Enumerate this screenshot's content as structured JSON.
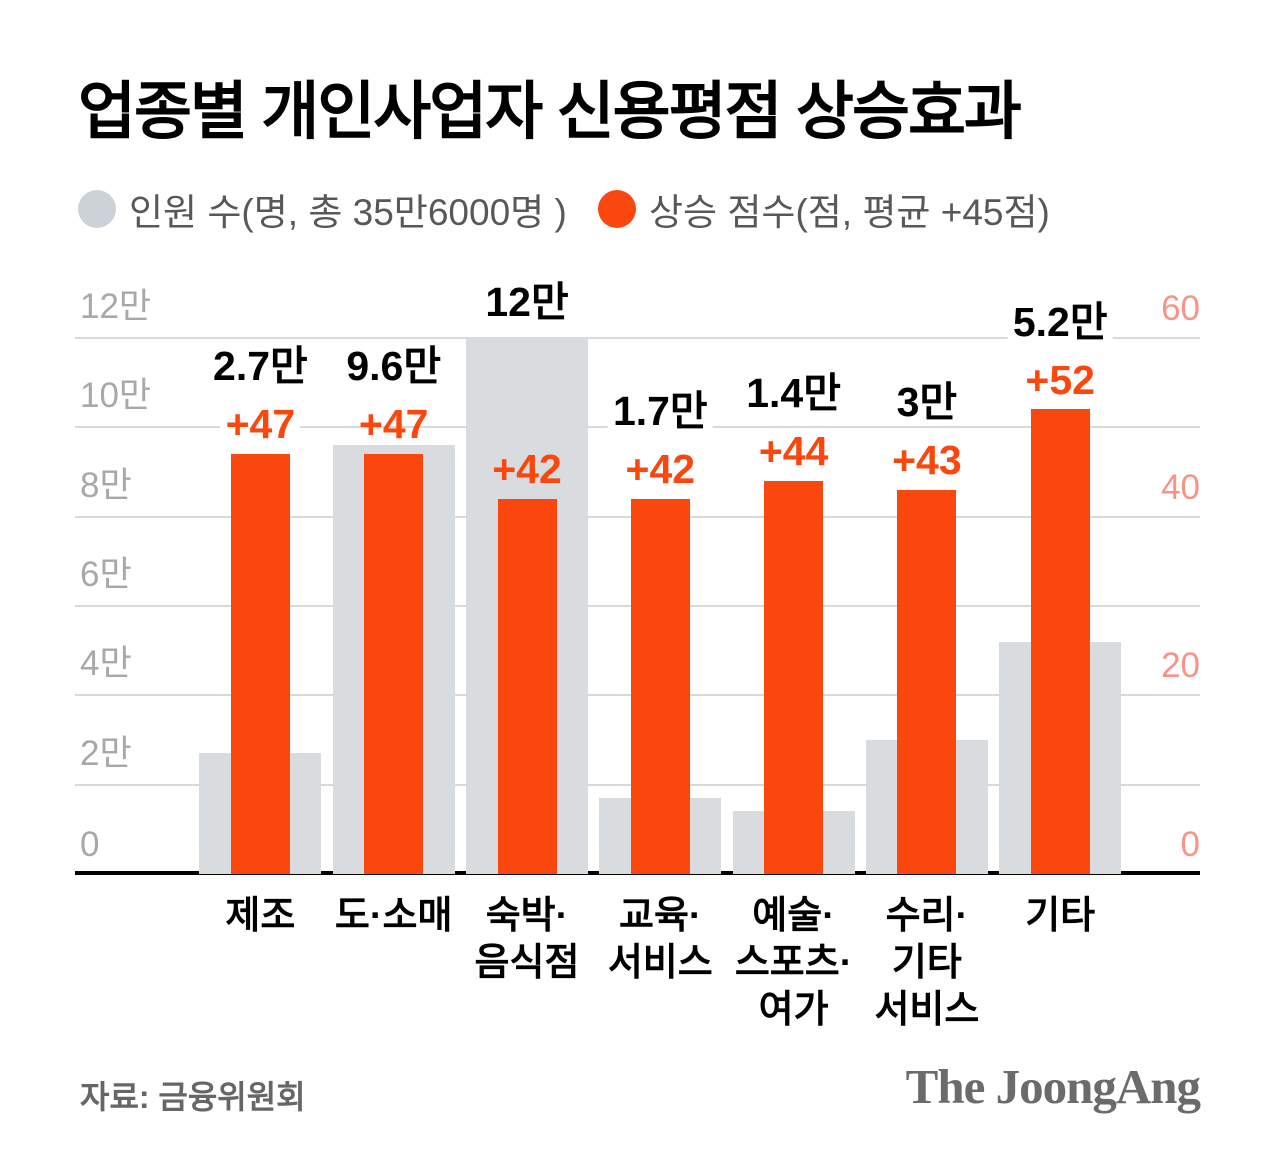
{
  "title": "업종별 개인사업자 신용평점 상승효과",
  "legend": {
    "people": {
      "label": "인원 수(명, 총 35만6000명 )",
      "color": "#ccd2d7"
    },
    "score": {
      "label": "상승 점수(점, 평균 +45점)",
      "color": "#fa470d"
    }
  },
  "footer": {
    "source": "자료: 금융위원회",
    "logo": "The JoongAng"
  },
  "colors": {
    "people_bar": "#d8dcdf",
    "score_bar": "#fa470d",
    "gridline": "#d9d9d9",
    "axis_line": "#000000",
    "left_tick": "#a8a8a8",
    "right_tick": "#f99287",
    "people_label": "#000000",
    "score_label": "#fa470d"
  },
  "chart_data": {
    "type": "bar",
    "title": "업종별 개인사업자 신용평점 상승효과",
    "categories": [
      "제조",
      "도·소매",
      "숙박·음식점",
      "교육·서비스",
      "예술·스포츠·여가",
      "수리·기타 서비스",
      "기타"
    ],
    "category_lines": [
      [
        "제조"
      ],
      [
        "도·소매"
      ],
      [
        "숙박·",
        "음식점"
      ],
      [
        "교육·",
        "서비스"
      ],
      [
        "예술·",
        "스포츠·",
        "여가"
      ],
      [
        "수리·",
        "기타",
        "서비스"
      ],
      [
        "기타"
      ]
    ],
    "series": [
      {
        "name": "인원 수(명, 총 35만6000명)",
        "axis": "left",
        "values": [
          27000,
          96000,
          120000,
          17000,
          14000,
          30000,
          52000
        ],
        "labels": [
          "2.7만",
          "9.6만",
          "12만",
          "1.7만",
          "1.4만",
          "3만",
          "5.2만"
        ],
        "color": "#d8dcdf"
      },
      {
        "name": "상승 점수(점, 평균 +45점)",
        "axis": "right",
        "values": [
          47,
          47,
          42,
          42,
          44,
          43,
          52
        ],
        "labels": [
          "+47",
          "+47",
          "+42",
          "+42",
          "+44",
          "+43",
          "+52"
        ],
        "color": "#fa470d"
      }
    ],
    "left_axis": {
      "ticks": [
        "12만",
        "10만",
        "8만",
        "6만",
        "4만",
        "2만",
        "0"
      ],
      "values": [
        120000,
        100000,
        80000,
        60000,
        40000,
        20000,
        0
      ],
      "min": 0,
      "max": 120000
    },
    "right_axis": {
      "ticks": [
        "60",
        "40",
        "20",
        "0"
      ],
      "values": [
        60,
        40,
        20,
        0
      ],
      "min": 0,
      "max": 60
    },
    "grid": true,
    "legend_position": "top"
  }
}
